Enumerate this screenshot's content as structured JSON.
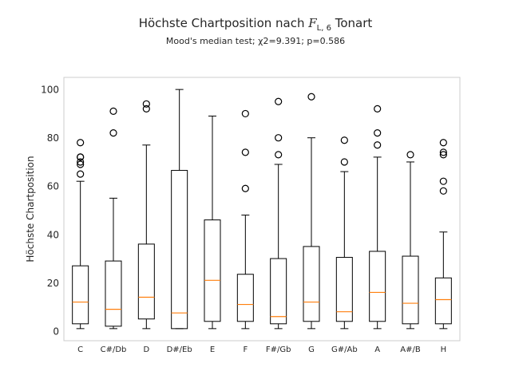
{
  "colors": {
    "box": "#000000",
    "median": "#ff7f0e",
    "frame": "#cccccc",
    "text": "#262626",
    "background": "#ffffff"
  },
  "chart_data": {
    "type": "boxplot",
    "title": {
      "prefix": "Höchste Chartposition nach ",
      "symbol": "F",
      "symbol_sub": "L, 6",
      "suffix": " Tonart"
    },
    "subtitle": "Mood's median test; χ2=9.391; p=0.586",
    "xlabel": "",
    "ylabel": "Höchste Chartposition",
    "ylim": [
      -4,
      105
    ],
    "yticks": [
      0,
      20,
      40,
      60,
      80,
      100
    ],
    "grid": false,
    "categories": [
      "C",
      "C#/Db",
      "D",
      "D#/Eb",
      "E",
      "F",
      "F#/Gb",
      "G",
      "G#/Ab",
      "A",
      "A#/B",
      "H"
    ],
    "boxes": [
      {
        "whisker_low": 1,
        "q1": 3,
        "median": 12,
        "q3": 27,
        "whisker_high": 62,
        "outliers": [
          65,
          69,
          70,
          72,
          72,
          78
        ]
      },
      {
        "whisker_low": 1,
        "q1": 2,
        "median": 9,
        "q3": 29,
        "whisker_high": 55,
        "outliers": [
          82,
          91
        ]
      },
      {
        "whisker_low": 1,
        "q1": 5,
        "median": 14,
        "q3": 36,
        "whisker_high": 77,
        "outliers": [
          92,
          94
        ]
      },
      {
        "whisker_low": 1,
        "q1": 1,
        "median": 7.5,
        "q3": 66.5,
        "whisker_high": 100,
        "outliers": []
      },
      {
        "whisker_low": 1,
        "q1": 4,
        "median": 21,
        "q3": 46,
        "whisker_high": 89,
        "outliers": []
      },
      {
        "whisker_low": 1,
        "q1": 4,
        "median": 11,
        "q3": 23.5,
        "whisker_high": 48,
        "outliers": [
          59,
          74,
          90
        ]
      },
      {
        "whisker_low": 1,
        "q1": 3,
        "median": 6,
        "q3": 30,
        "whisker_high": 69,
        "outliers": [
          73,
          80,
          95
        ]
      },
      {
        "whisker_low": 1,
        "q1": 4,
        "median": 12,
        "q3": 35,
        "whisker_high": 80,
        "outliers": [
          97
        ]
      },
      {
        "whisker_low": 1,
        "q1": 4,
        "median": 8,
        "q3": 30.5,
        "whisker_high": 66,
        "outliers": [
          70,
          79
        ]
      },
      {
        "whisker_low": 1,
        "q1": 4,
        "median": 16,
        "q3": 33,
        "whisker_high": 72,
        "outliers": [
          77,
          82,
          92
        ]
      },
      {
        "whisker_low": 1,
        "q1": 3,
        "median": 11.5,
        "q3": 31,
        "whisker_high": 70,
        "outliers": [
          73
        ]
      },
      {
        "whisker_low": 1,
        "q1": 3,
        "median": 13,
        "q3": 22,
        "whisker_high": 41,
        "outliers": [
          58,
          62,
          73,
          74,
          78
        ]
      }
    ]
  }
}
